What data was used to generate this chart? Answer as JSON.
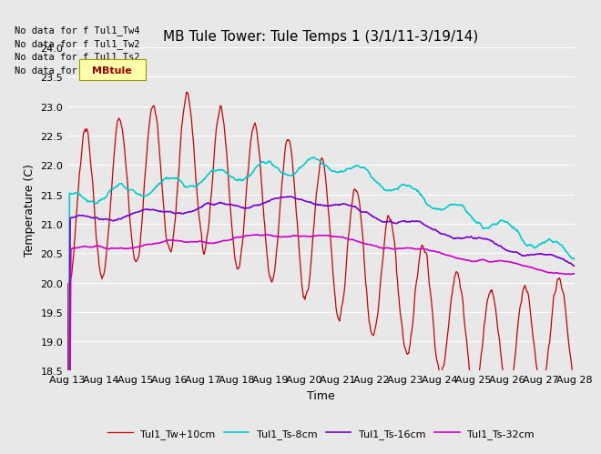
{
  "title": "MB Tule Tower: Tule Temps 1 (3/1/11-3/19/14)",
  "xlabel": "Time",
  "ylabel": "Temperature (C)",
  "ylim": [
    18.5,
    24.0
  ],
  "yticks": [
    18.5,
    19.0,
    19.5,
    20.0,
    20.5,
    21.0,
    21.5,
    22.0,
    22.5,
    23.0,
    23.5,
    24.0
  ],
  "xtick_labels": [
    "Aug 13",
    "Aug 14",
    "Aug 15",
    "Aug 16",
    "Aug 17",
    "Aug 18",
    "Aug 19",
    "Aug 20",
    "Aug 21",
    "Aug 22",
    "Aug 23",
    "Aug 24",
    "Aug 25",
    "Aug 26",
    "Aug 27",
    "Aug 28"
  ],
  "plot_bg_color": "#e8e8e8",
  "grid_color": "#ffffff",
  "legend_entries": [
    "Tul1_Tw+10cm",
    "Tul1_Ts-8cm",
    "Tul1_Ts-16cm",
    "Tul1_Ts-32cm"
  ],
  "line_colors": [
    "#cc0000",
    "#00cccc",
    "#7700cc",
    "#cc00cc"
  ],
  "no_data_texts": [
    "No data for f Tul1_Tw4",
    "No data for f Tul1_Tw2",
    "No data for f Tul1_Ts2",
    "No data for f Tul1_Ts5"
  ],
  "tooltip_text": "MBtule",
  "title_fontsize": 11,
  "axis_fontsize": 9,
  "tick_fontsize": 8
}
